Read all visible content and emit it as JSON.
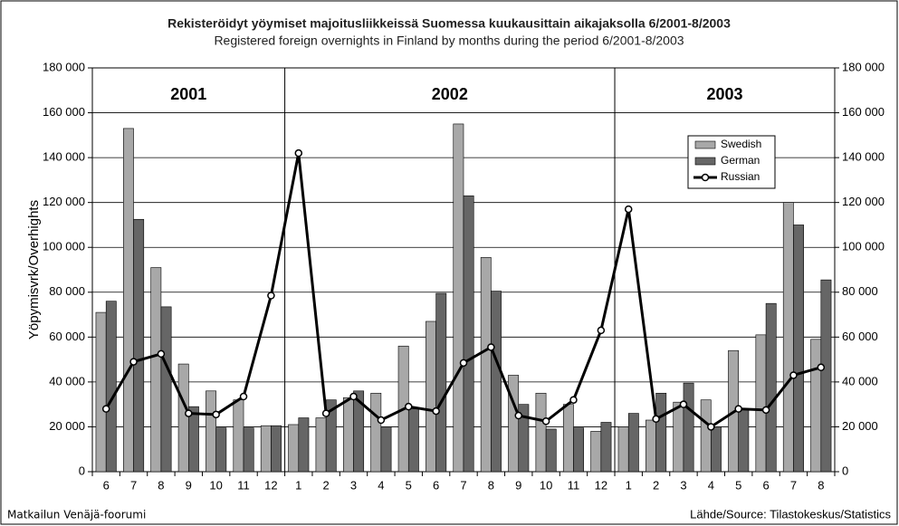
{
  "chart_data": {
    "type": "bar_line",
    "title": "Rekisteröidyt yöymiset majoitusliikkeissä Suomessa kuukausittain aikajaksolla 6/2001-8/2003",
    "subtitle": "Registered foreign overnights in Finland by months during the period 6/2001-8/2003",
    "y_label": "Yöpymisvrk/Overhights",
    "year_labels": [
      "2001",
      "2002",
      "2003"
    ],
    "categories": [
      "6",
      "7",
      "8",
      "9",
      "10",
      "11",
      "12",
      "1",
      "2",
      "3",
      "4",
      "5",
      "6",
      "7",
      "8",
      "9",
      "10",
      "11",
      "12",
      "1",
      "2",
      "3",
      "4",
      "5",
      "6",
      "7",
      "8"
    ],
    "series": [
      {
        "name": "Swedish",
        "color": "#a8a8a8",
        "kind": "bar",
        "values": [
          71000,
          153000,
          91000,
          48000,
          36000,
          32000,
          20500,
          21000,
          24000,
          33000,
          35000,
          56000,
          67000,
          155000,
          95500,
          43000,
          35000,
          30000,
          18000,
          20000,
          23000,
          31000,
          32000,
          54000,
          61000,
          120000,
          59000
        ]
      },
      {
        "name": "German",
        "color": "#666666",
        "kind": "bar",
        "values": [
          76000,
          112500,
          73500,
          29000,
          19500,
          19500,
          20500,
          24000,
          32000,
          36000,
          20000,
          28000,
          79500,
          123000,
          80500,
          30000,
          19000,
          19500,
          22000,
          26000,
          35000,
          39500,
          20000,
          28000,
          75000,
          110000,
          85500
        ]
      },
      {
        "name": "Russian",
        "color": "#000000",
        "kind": "line",
        "values": [
          28000,
          49000,
          52500,
          26000,
          25500,
          33500,
          78500,
          142000,
          26000,
          33500,
          23000,
          29000,
          27000,
          48500,
          55500,
          25000,
          22500,
          32000,
          63000,
          117000,
          23500,
          30000,
          20000,
          28000,
          27500,
          43000,
          46500
        ]
      }
    ],
    "ylim": [
      0,
      180000
    ],
    "yticks": [
      0,
      {
        "value": 20000,
        "label": "20 000"
      },
      {
        "value": 40000,
        "label": "40 000"
      },
      {
        "value": 60000,
        "label": "60 000"
      },
      {
        "value": 80000,
        "label": "80 000"
      },
      {
        "value": 100000,
        "label": "100 000"
      },
      {
        "value": 120000,
        "label": "120 000"
      },
      {
        "value": 140000,
        "label": "140 000"
      },
      {
        "value": 160000,
        "label": "160 000"
      },
      {
        "value": 180000,
        "label": "180 000"
      }
    ],
    "y2lim": [
      0,
      180000
    ],
    "y2ticks": [
      0,
      {
        "value": 20000,
        "label": "20 000"
      },
      {
        "value": 40000,
        "label": "40 000"
      },
      {
        "value": 60000,
        "label": "60 000"
      },
      {
        "value": 80000,
        "label": "80 000"
      },
      {
        "value": 100000,
        "label": "100 000"
      },
      {
        "value": 120000,
        "label": "120 000"
      },
      {
        "value": 140000,
        "label": "140 000"
      },
      {
        "value": 160000,
        "label": "160 000"
      },
      {
        "value": 180000,
        "label": "180 000"
      }
    ],
    "grid": true,
    "legend": "upper right",
    "footer_left": "Matkailun Venäjä-foorumi",
    "footer_right": "Lähde/Source: Tilastokeskus/Statistics"
  }
}
